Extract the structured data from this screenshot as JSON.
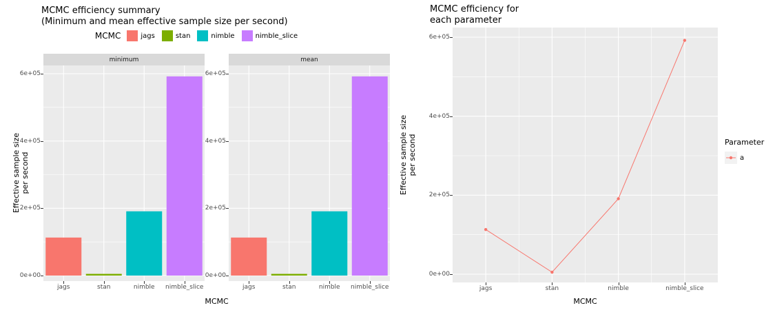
{
  "ui": {
    "left": {
      "title_line1": "MCMC efficiency summary",
      "title_line2": "(Minimum and mean effective sample size per second)",
      "legend_title": "MCMC",
      "ylabel_line1": "Effective sample size",
      "ylabel_line2": "per second",
      "xlabel": "MCMC"
    },
    "right": {
      "title_line1": "MCMC efficiency for",
      "title_line2": "each parameter",
      "legend_title": "Parameter",
      "ylabel_line1": "Effective sample size",
      "ylabel_line2": "per second",
      "xlabel": "MCMC"
    },
    "colors": {
      "panel_bg": "#EBEBEB",
      "strip_bg": "#D9D9D9",
      "grid": "#FFFFFF",
      "tick_text": "#4D4D4D",
      "legend_key_bg": "#F2F2F2"
    }
  },
  "chart_data": [
    {
      "type": "bar",
      "title": "MCMC efficiency summary (Minimum and mean effective sample size per second)",
      "categories": [
        "jags",
        "stan",
        "nimble",
        "nimble_slice"
      ],
      "facets": [
        {
          "name": "minimum",
          "values": [
            113000,
            5000,
            191000,
            592000
          ]
        },
        {
          "name": "mean",
          "values": [
            113000,
            5000,
            191000,
            592000
          ]
        }
      ],
      "bar_colors": [
        "#F8766D",
        "#7CAE00",
        "#00BFC4",
        "#C77CFF"
      ],
      "xlabel": "MCMC",
      "ylabel": "Effective sample size per second",
      "ylim": [
        0,
        620000
      ],
      "grid": true,
      "yticks": [
        {
          "value": 0,
          "label": "0e+00"
        },
        {
          "value": 200000,
          "label": "2e+05"
        },
        {
          "value": 400000,
          "label": "4e+05"
        },
        {
          "value": 600000,
          "label": "6e+05"
        }
      ],
      "legend": {
        "title": "MCMC",
        "position": "top",
        "items": [
          {
            "label": "jags",
            "color": "#F8766D"
          },
          {
            "label": "stan",
            "color": "#7CAE00"
          },
          {
            "label": "nimble",
            "color": "#00BFC4"
          },
          {
            "label": "nimble_slice",
            "color": "#C77CFF"
          }
        ]
      }
    },
    {
      "type": "line",
      "title": "MCMC efficiency for each parameter",
      "categories": [
        "jags",
        "stan",
        "nimble",
        "nimble_slice"
      ],
      "series": [
        {
          "name": "a",
          "color": "#F8766D",
          "values": [
            113000,
            5000,
            191000,
            592000
          ]
        }
      ],
      "xlabel": "MCMC",
      "ylabel": "Effective sample size per second",
      "ylim": [
        0,
        620000
      ],
      "grid": true,
      "yticks": [
        {
          "value": 0,
          "label": "0e+00"
        },
        {
          "value": 200000,
          "label": "2e+05"
        },
        {
          "value": 400000,
          "label": "4e+05"
        },
        {
          "value": 600000,
          "label": "6e+05"
        }
      ],
      "legend": {
        "title": "Parameter",
        "position": "right",
        "items": [
          {
            "label": "a",
            "color": "#F8766D"
          }
        ]
      }
    }
  ]
}
